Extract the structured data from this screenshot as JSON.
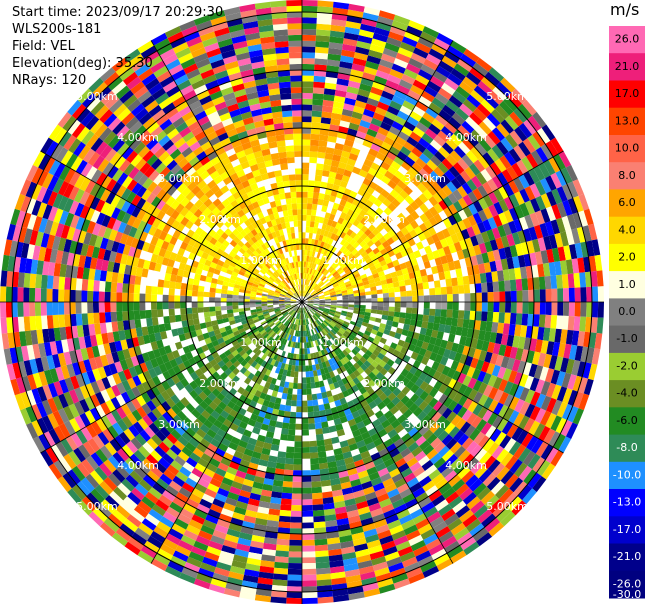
{
  "header": {
    "start_time": "Start time: 2023/09/17 20:29:30",
    "site": "WLS200s-181",
    "field": "Field: VEL",
    "elevation": "Elevation(deg): 35.30",
    "nrays": "NRays: 120"
  },
  "chart_data": {
    "type": "radar-ppi",
    "field": "VEL",
    "units": "m/s",
    "n_rays": 120,
    "elevation_deg": 35.3,
    "range_rings_km": [
      "1.00km",
      "2.00km",
      "3.00km",
      "4.00km",
      "5.00km"
    ],
    "colorbar": {
      "ticks": [
        "26.0",
        "21.0",
        "17.0",
        "13.0",
        "10.0",
        "8.0",
        "6.0",
        "4.0",
        "2.0",
        "1.0",
        "0.0",
        "-1.0",
        "-2.0",
        "-4.0",
        "-6.0",
        "-8.0",
        "-10.0",
        "-13.0",
        "-17.0",
        "-21.0",
        "-26.0",
        "-30.0"
      ],
      "colors": [
        "#ff69b4",
        "#ee1f7a",
        "#ff0000",
        "#ff4500",
        "#ff6347",
        "#fa8072",
        "#ffa500",
        "#ffd700",
        "#ffff00",
        "#ffffe0",
        "#808080",
        "#696969",
        "#9acd32",
        "#6b8e23",
        "#228b22",
        "#2e8b57",
        "#1e90ff",
        "#0000ff",
        "#0000cd",
        "#00008b",
        "#000080"
      ],
      "label_text_colors": [
        "#000000",
        "#000000",
        "#000000",
        "#000000",
        "#000000",
        "#000000",
        "#000000",
        "#000000",
        "#000000",
        "#000000",
        "#000000",
        "#000000",
        "#000000",
        "#000000",
        "#000000",
        "#ffffff",
        "#ffffff",
        "#ffffff",
        "#ffffff",
        "#ffffff",
        "#ffffff",
        "#ffffff"
      ]
    },
    "valid_region": {
      "north_half_dominant": "yellow/orange (positive velocity, away)",
      "south_half_dominant": "green (negative velocity, toward)",
      "outer_noise": "random multicolor"
    }
  }
}
